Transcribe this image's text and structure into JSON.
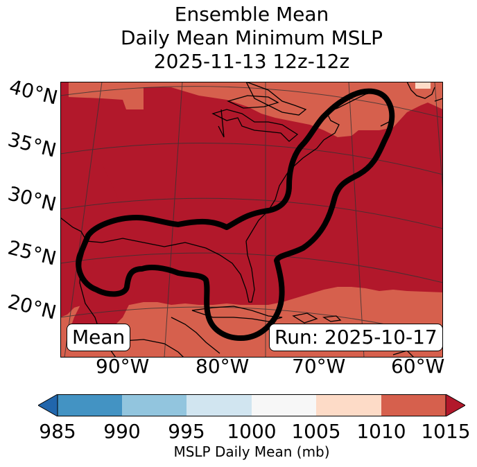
{
  "title": {
    "line1": "Ensemble Mean",
    "line2": "Daily Mean Minimum MSLP",
    "line3": "2025-11-13 12z-12z"
  },
  "lat_labels": [
    "40°N",
    "35°N",
    "30°N",
    "25°N",
    "20°N"
  ],
  "lon_labels": [
    "90°W",
    "80°W",
    "70°W",
    "60°W"
  ],
  "legend_box": "Mean",
  "run_box": "Run: 2025-10-17",
  "colorbar": {
    "ticks": [
      "985",
      "990",
      "995",
      "1000",
      "1005",
      "1010",
      "1015"
    ],
    "label": "MSLP Daily Mean (mb)",
    "colors": [
      "#2166ac",
      "#4393c3",
      "#92c5de",
      "#d1e5f0",
      "#f7f7f7",
      "#fddbc7",
      "#d6604d",
      "#b2182b"
    ]
  }
}
